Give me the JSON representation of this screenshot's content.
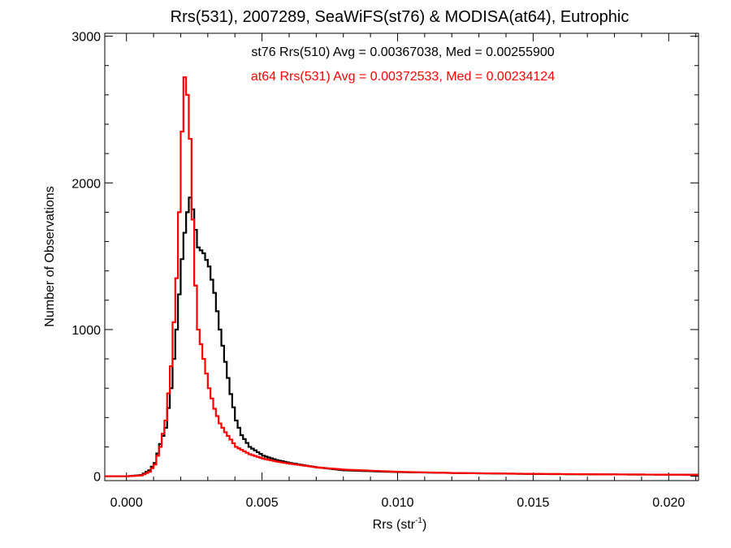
{
  "chart_data": {
    "type": "line",
    "title": "Rrs(531), 2007289, SeaWiFS(st76) & MODISA(at64), Eutrophic",
    "xlabel": "Rrs (str",
    "xlabel_sup": "-1",
    "xlabel_close": ")",
    "ylabel": "Number of Observations",
    "xlim": [
      -0.0008,
      0.0211
    ],
    "ylim": [
      -30,
      3020
    ],
    "xticks": [
      0.0,
      0.005,
      0.01,
      0.015,
      0.02
    ],
    "xtick_labels": [
      "0.000",
      "0.005",
      "0.010",
      "0.015",
      "0.020"
    ],
    "yticks": [
      0,
      1000,
      2000,
      3000
    ],
    "ytick_labels": [
      "0",
      "1000",
      "2000",
      "3000"
    ],
    "grid": false,
    "series": [
      {
        "name": "st76 Rrs(510)",
        "color": "#000000",
        "annotation": "st76 Rrs(510) Avg = 0.00367038, Med = 0.00255900",
        "points": [
          [
            0.0,
            0
          ],
          [
            0.0005,
            8
          ],
          [
            0.0008,
            40
          ],
          [
            0.001,
            90
          ],
          [
            0.0012,
            220
          ],
          [
            0.0014,
            330
          ],
          [
            0.0016,
            600
          ],
          [
            0.0018,
            1000
          ],
          [
            0.002,
            1480
          ],
          [
            0.0021,
            1660
          ],
          [
            0.0022,
            1800
          ],
          [
            0.0023,
            1900
          ],
          [
            0.0024,
            1820
          ],
          [
            0.0025,
            1680
          ],
          [
            0.0026,
            1560
          ],
          [
            0.0028,
            1520
          ],
          [
            0.003,
            1430
          ],
          [
            0.0032,
            1250
          ],
          [
            0.0034,
            1000
          ],
          [
            0.0036,
            780
          ],
          [
            0.0038,
            560
          ],
          [
            0.004,
            380
          ],
          [
            0.0042,
            280
          ],
          [
            0.0045,
            200
          ],
          [
            0.005,
            140
          ],
          [
            0.0055,
            110
          ],
          [
            0.006,
            90
          ],
          [
            0.007,
            60
          ],
          [
            0.008,
            40
          ],
          [
            0.01,
            28
          ],
          [
            0.012,
            22
          ],
          [
            0.015,
            15
          ],
          [
            0.018,
            12
          ],
          [
            0.021,
            10
          ]
        ]
      },
      {
        "name": "at64 Rrs(531)",
        "color": "#ff0000",
        "annotation": "at64 Rrs(531) Avg = 0.00372533, Med = 0.00234124",
        "points": [
          [
            0.0,
            0
          ],
          [
            0.0005,
            5
          ],
          [
            0.0008,
            30
          ],
          [
            0.001,
            80
          ],
          [
            0.0012,
            200
          ],
          [
            0.0014,
            380
          ],
          [
            0.0016,
            750
          ],
          [
            0.0018,
            1350
          ],
          [
            0.0019,
            1800
          ],
          [
            0.002,
            2350
          ],
          [
            0.0021,
            2720
          ],
          [
            0.0022,
            2600
          ],
          [
            0.0023,
            2300
          ],
          [
            0.0024,
            1750
          ],
          [
            0.0025,
            1300
          ],
          [
            0.0026,
            1000
          ],
          [
            0.0028,
            800
          ],
          [
            0.003,
            600
          ],
          [
            0.0032,
            460
          ],
          [
            0.0034,
            360
          ],
          [
            0.0036,
            300
          ],
          [
            0.0038,
            250
          ],
          [
            0.004,
            200
          ],
          [
            0.0045,
            150
          ],
          [
            0.005,
            120
          ],
          [
            0.0055,
            100
          ],
          [
            0.006,
            85
          ],
          [
            0.007,
            60
          ],
          [
            0.008,
            45
          ],
          [
            0.01,
            30
          ],
          [
            0.012,
            22
          ],
          [
            0.015,
            16
          ],
          [
            0.018,
            12
          ],
          [
            0.021,
            10
          ]
        ]
      }
    ]
  }
}
